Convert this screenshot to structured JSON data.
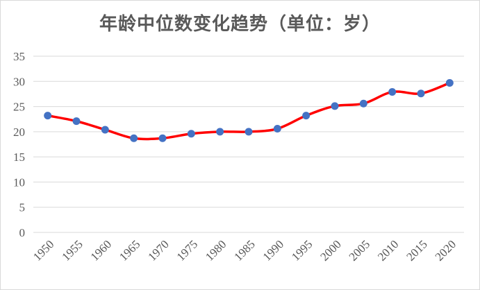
{
  "chart_data": {
    "type": "line",
    "title": "年龄中位数变化趋势（单位：岁）",
    "xlabel": "",
    "ylabel": "",
    "categories": [
      "1950",
      "1955",
      "1960",
      "1965",
      "1970",
      "1975",
      "1980",
      "1985",
      "1990",
      "1995",
      "2000",
      "2005",
      "2010",
      "2015",
      "2020"
    ],
    "series": [
      {
        "name": "",
        "values": [
          23.2,
          22.1,
          20.4,
          18.7,
          18.7,
          19.6,
          20.0,
          20.0,
          20.6,
          23.2,
          25.1,
          25.6,
          27.9,
          27.6,
          29.7
        ]
      }
    ],
    "ylim": [
      0,
      35
    ],
    "yticks": [
      "0",
      "5",
      "10",
      "15",
      "20",
      "25",
      "30",
      "35"
    ],
    "grid": "horizontal",
    "legend": "none",
    "colors": {
      "line": "#ff0000",
      "marker": "#4472c4",
      "grid": "#d9d9d9",
      "text": "#595959"
    }
  }
}
